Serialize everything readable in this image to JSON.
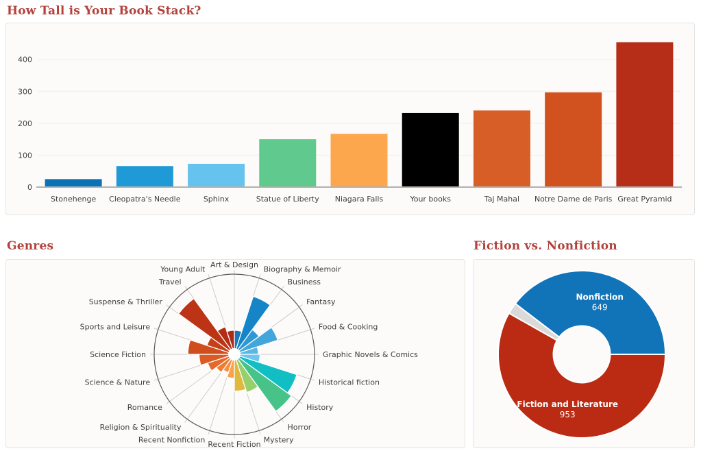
{
  "page": {
    "background": "#ffffff"
  },
  "theme": {
    "title_color": "#b2423c",
    "panel_bg": "#fcfbf9",
    "panel_border": "#e6e4e0",
    "axis_text_color": "#3f3f3f",
    "axis_line_color": "#b3b1ae",
    "gridline_color": "#f0efec",
    "polar_grid_color": "#cccccc",
    "polar_ring_color": "#58585a",
    "slice_stroke_color": "#ffffff",
    "donut_label_color": "#ffffff"
  },
  "sections": {
    "book_stack": {
      "title": "How Tall is Your Book Stack?"
    },
    "genres": {
      "title": "Genres"
    },
    "fiction": {
      "title": "Fiction vs. Nonfiction"
    }
  },
  "chart_data": [
    {
      "id": "book-stack",
      "type": "bar",
      "title": "How Tall is Your Book Stack?",
      "categories": [
        "Stonehenge",
        "Cleopatra's Needle",
        "Sphinx",
        "Statue of Liberty",
        "Niagara Falls",
        "Your books",
        "Taj Mahal",
        "Notre Dame de Paris",
        "Great Pyramid"
      ],
      "values": [
        25,
        66,
        73,
        150,
        167,
        232,
        240,
        297,
        454
      ],
      "colors": [
        "#0a72b6",
        "#1f9ad7",
        "#66c3ee",
        "#60ca8e",
        "#fca74d",
        "#000000",
        "#d85e27",
        "#d1521f",
        "#b62e18"
      ],
      "xlabel": "",
      "ylabel": "",
      "yticks": [
        0,
        100,
        200,
        300,
        400
      ],
      "ylim": [
        0,
        470
      ],
      "grid": true,
      "legend": false
    },
    {
      "id": "genres",
      "type": "polar_area",
      "title": "Genres",
      "categories": [
        "Art & Design",
        "Biography & Memoir",
        "Business",
        "Fantasy",
        "Food & Cooking",
        "Graphic Novels & Comics",
        "Historical fiction",
        "History",
        "Horror",
        "Mystery",
        "Recent Fiction",
        "Recent Nonfiction",
        "Religion & Spirituality",
        "Romance",
        "Science & Nature",
        "Science Fiction",
        "Sports and Leisure",
        "Suspense & Thriller",
        "Travel",
        "Young Adult"
      ],
      "values": [
        30,
        76,
        38,
        57,
        30,
        32,
        82,
        88,
        50,
        46,
        30,
        24,
        28,
        35,
        44,
        58,
        36,
        86,
        36,
        30
      ],
      "colors": [
        "#1979b8",
        "#1585c8",
        "#2f97d3",
        "#42a5db",
        "#57b7e5",
        "#6ac6ee",
        "#10bec4",
        "#47c389",
        "#98cf6d",
        "#dfb93d",
        "#f9a24b",
        "#f89043",
        "#ef7c35",
        "#e4692b",
        "#da5b23",
        "#d04d1e",
        "#c6401a",
        "#bc3316",
        "#b42c13",
        "#ad2b18"
      ],
      "max": 100,
      "start_at_top": true,
      "direction": "clockwise",
      "grid": true,
      "legend": false
    },
    {
      "id": "fiction-nonfiction",
      "type": "donut",
      "title": "Fiction vs. Nonfiction",
      "slices": [
        {
          "label": "Fiction and Literature",
          "value": 953,
          "color": "#bb2a13"
        },
        {
          "label": "",
          "value": 36,
          "color": "#dadada"
        },
        {
          "label": "Nonfiction",
          "value": 649,
          "color": "#1173b8"
        }
      ],
      "start_angle_deg": 0,
      "direction": "clockwise",
      "inner_radius_ratio": 0.34,
      "legend": false
    }
  ]
}
